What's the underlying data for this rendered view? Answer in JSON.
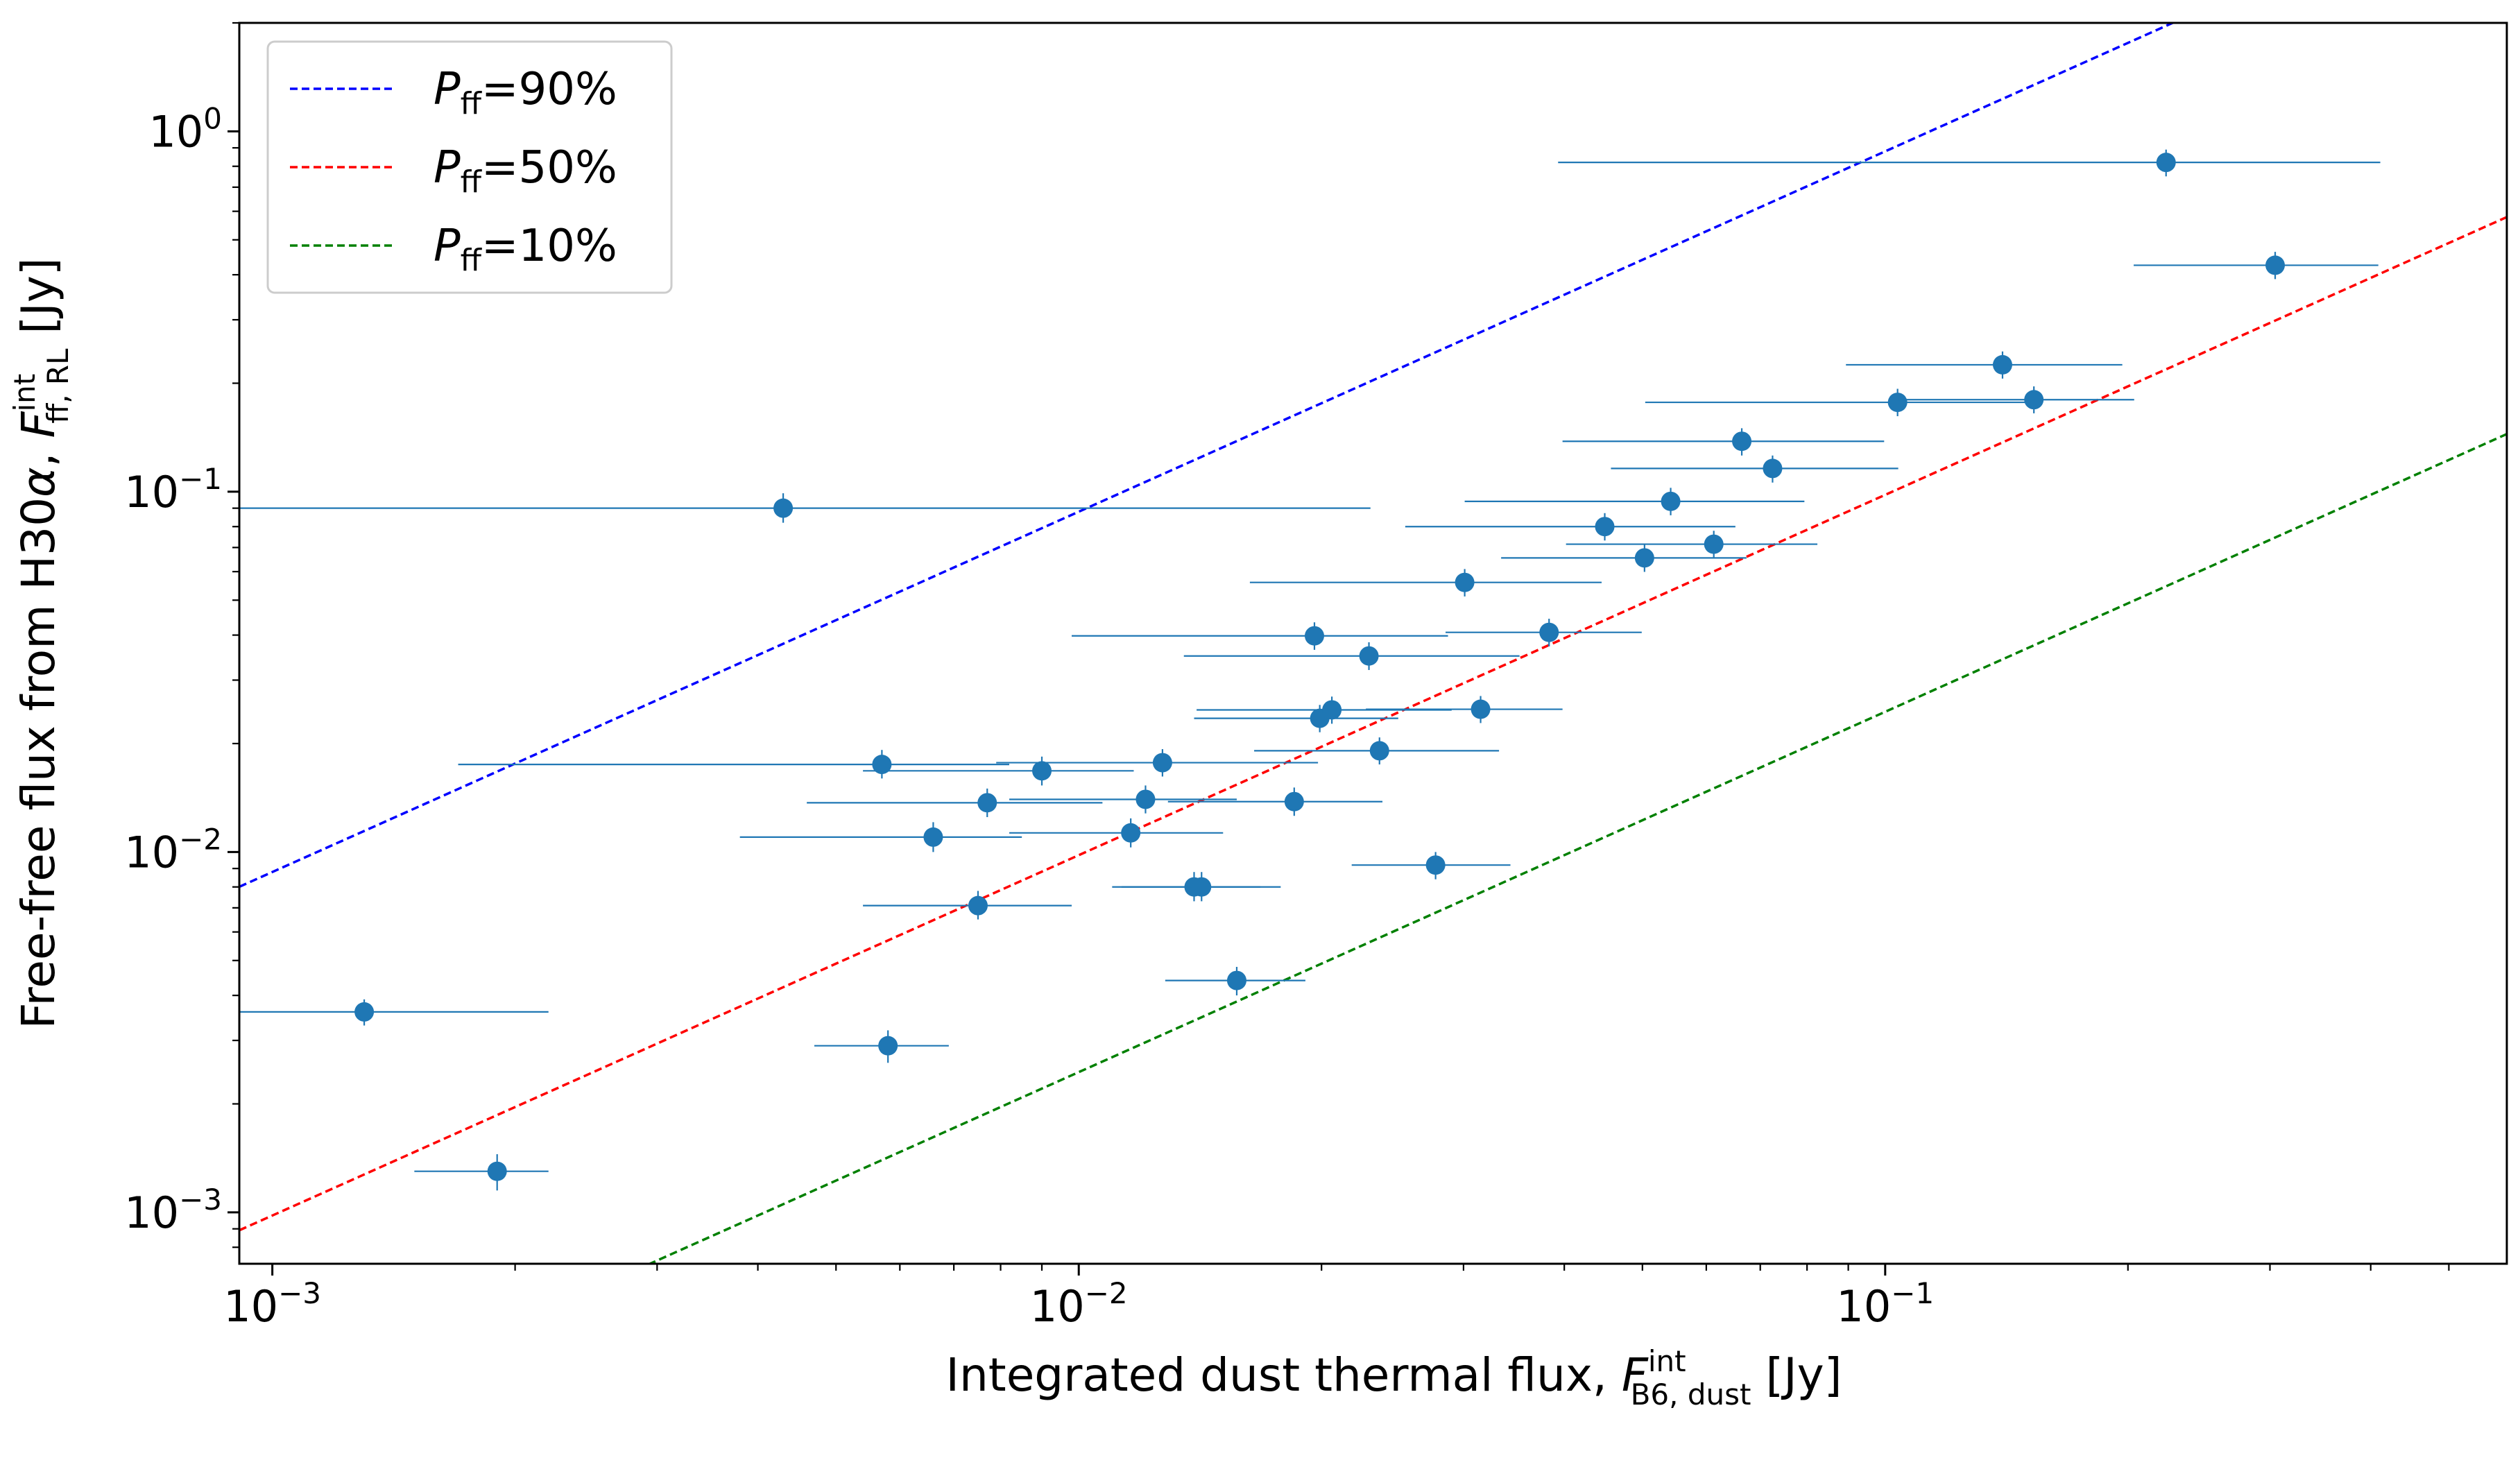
{
  "chart_data": {
    "type": "scatter",
    "xscale": "log",
    "yscale": "log",
    "xlim": [
      0.00091,
      0.59
    ],
    "ylim": [
      0.00072,
      2.0
    ],
    "xlabel": {
      "main": "Integrated dust thermal flux, ",
      "var": "F",
      "sup": "int",
      "sub": "B6, dust",
      "unit": " [Jy]"
    },
    "ylabel": {
      "main": "Free-free flux from H30",
      "alpha": "α",
      "comma": ", ",
      "var": "F",
      "sup": "int",
      "sub": "ff, RL",
      "unit": " [Jy]"
    },
    "x_major_ticks": [
      {
        "value": 0.001,
        "base": "10",
        "exp": "−3"
      },
      {
        "value": 0.01,
        "base": "10",
        "exp": "−2"
      },
      {
        "value": 0.1,
        "base": "10",
        "exp": "−1"
      }
    ],
    "y_major_ticks": [
      {
        "value": 0.001,
        "base": "10",
        "exp": "−3"
      },
      {
        "value": 0.01,
        "base": "10",
        "exp": "−2"
      },
      {
        "value": 0.1,
        "base": "10",
        "exp": "−1"
      },
      {
        "value": 1,
        "base": "10",
        "exp": "0"
      }
    ],
    "legend": {
      "placement": "top-left",
      "entries": [
        {
          "var": "P",
          "sub": "ff",
          "text": "=90%",
          "color": "#0000ff",
          "ratio": 0.9
        },
        {
          "var": "P",
          "sub": "ff",
          "text": "=50%",
          "color": "#ff0000",
          "ratio": 0.5
        },
        {
          "var": "P",
          "sub": "ff",
          "text": "=10%",
          "color": "#008000",
          "ratio": 0.1
        }
      ]
    },
    "reference_lines": [
      {
        "name": "P_ff=90%",
        "color": "#0000ff",
        "style": "dashed",
        "y_over_x": 8.8
      },
      {
        "name": "P_ff=50%",
        "color": "#ff0000",
        "style": "dashed",
        "y_over_x": 0.98
      },
      {
        "name": "P_ff=10%",
        "color": "#008000",
        "style": "dashed",
        "y_over_x": 0.245
      }
    ],
    "marker_color": "#1f77b4",
    "series": [
      {
        "name": "sources",
        "points": [
          {
            "x": 0.0043,
            "y": 0.09,
            "xerr": [
              0.00091,
              0.023
            ],
            "yerr": [
              0.082,
              0.099
            ]
          },
          {
            "x": 0.0013,
            "y": 0.0036,
            "xerr": [
              0.00091,
              0.0022
            ],
            "yerr": [
              0.0033,
              0.0039
            ]
          },
          {
            "x": 0.0019,
            "y": 0.0013,
            "xerr": [
              0.0015,
              0.0022
            ],
            "yerr": [
              0.00115,
              0.00145
            ]
          },
          {
            "x": 0.0058,
            "y": 0.0029,
            "xerr": [
              0.0047,
              0.0069
            ],
            "yerr": [
              0.0026,
              0.0032
            ]
          },
          {
            "x": 0.0057,
            "y": 0.0175,
            "xerr": [
              0.0017,
              0.0082
            ],
            "yerr": [
              0.016,
              0.0192
            ]
          },
          {
            "x": 0.0066,
            "y": 0.011,
            "xerr": [
              0.0038,
              0.0085
            ],
            "yerr": [
              0.01,
              0.0121
            ]
          },
          {
            "x": 0.0075,
            "y": 0.0071,
            "xerr": [
              0.0054,
              0.0098
            ],
            "yerr": [
              0.0065,
              0.0078
            ]
          },
          {
            "x": 0.0077,
            "y": 0.0137,
            "xerr": [
              0.0046,
              0.0107
            ],
            "yerr": [
              0.0125,
              0.015
            ]
          },
          {
            "x": 0.009,
            "y": 0.0168,
            "xerr": [
              0.0054,
              0.0117
            ],
            "yerr": [
              0.0153,
              0.0184
            ]
          },
          {
            "x": 0.0116,
            "y": 0.0113,
            "xerr": [
              0.0082,
              0.0151
            ],
            "yerr": [
              0.0103,
              0.0124
            ]
          },
          {
            "x": 0.0121,
            "y": 0.014,
            "xerr": [
              0.0082,
              0.0157
            ],
            "yerr": [
              0.0128,
              0.0153
            ]
          },
          {
            "x": 0.0127,
            "y": 0.0177,
            "xerr": [
              0.0079,
              0.0198
            ],
            "yerr": [
              0.0162,
              0.0193
            ]
          },
          {
            "x": 0.0139,
            "y": 0.008,
            "xerr": [
              0.011,
              0.0168
            ],
            "yerr": [
              0.0073,
              0.0088
            ]
          },
          {
            "x": 0.0142,
            "y": 0.008,
            "xerr": [
              0.0113,
              0.0178
            ],
            "yerr": [
              0.0073,
              0.0088
            ]
          },
          {
            "x": 0.0157,
            "y": 0.0044,
            "xerr": [
              0.0128,
              0.0191
            ],
            "yerr": [
              0.004,
              0.0048
            ]
          },
          {
            "x": 0.0185,
            "y": 0.0138,
            "xerr": [
              0.0129,
              0.0238
            ],
            "yerr": [
              0.0126,
              0.0151
            ]
          },
          {
            "x": 0.0196,
            "y": 0.0398,
            "xerr": [
              0.0098,
              0.0287
            ],
            "yerr": [
              0.0364,
              0.0434
            ]
          },
          {
            "x": 0.0199,
            "y": 0.0235,
            "xerr": [
              0.0139,
              0.0249
            ],
            "yerr": [
              0.0215,
              0.0256
            ]
          },
          {
            "x": 0.0206,
            "y": 0.0248,
            "xerr": [
              0.014,
              0.029
            ],
            "yerr": [
              0.0227,
              0.027
            ]
          },
          {
            "x": 0.0229,
            "y": 0.035,
            "xerr": [
              0.0135,
              0.0352
            ],
            "yerr": [
              0.032,
              0.0382
            ]
          },
          {
            "x": 0.0236,
            "y": 0.0191,
            "xerr": [
              0.0165,
              0.0332
            ],
            "yerr": [
              0.0175,
              0.0208
            ]
          },
          {
            "x": 0.0277,
            "y": 0.0092,
            "xerr": [
              0.0218,
              0.0343
            ],
            "yerr": [
              0.0084,
              0.01
            ]
          },
          {
            "x": 0.0301,
            "y": 0.056,
            "xerr": [
              0.0163,
              0.0445
            ],
            "yerr": [
              0.0512,
              0.061
            ]
          },
          {
            "x": 0.0315,
            "y": 0.0249,
            "xerr": [
              0.0227,
              0.0398
            ],
            "yerr": [
              0.0228,
              0.0271
            ]
          },
          {
            "x": 0.0383,
            "y": 0.0407,
            "xerr": [
              0.0285,
              0.0499
            ],
            "yerr": [
              0.0372,
              0.0444
            ]
          },
          {
            "x": 0.0449,
            "y": 0.08,
            "xerr": [
              0.0254,
              0.0652
            ],
            "yerr": [
              0.0732,
              0.0872
            ]
          },
          {
            "x": 0.0503,
            "y": 0.0655,
            "xerr": [
              0.0334,
              0.0673
            ],
            "yerr": [
              0.0599,
              0.0714
            ]
          },
          {
            "x": 0.0542,
            "y": 0.094,
            "xerr": [
              0.0301,
              0.0794
            ],
            "yerr": [
              0.086,
              0.1025
            ]
          },
          {
            "x": 0.0613,
            "y": 0.0715,
            "xerr": [
              0.0402,
              0.0824
            ],
            "yerr": [
              0.0654,
              0.0779
            ]
          },
          {
            "x": 0.0664,
            "y": 0.138,
            "xerr": [
              0.0398,
              0.0997
            ],
            "yerr": [
              0.126,
              0.15
            ]
          },
          {
            "x": 0.0725,
            "y": 0.116,
            "xerr": [
              0.0457,
              0.1038
            ],
            "yerr": [
              0.106,
              0.126
            ]
          },
          {
            "x": 0.1036,
            "y": 0.177,
            "xerr": [
              0.0504,
              0.1532
            ],
            "yerr": [
              0.162,
              0.193
            ]
          },
          {
            "x": 0.1398,
            "y": 0.225,
            "xerr": [
              0.0894,
              0.1968
            ],
            "yerr": [
              0.206,
              0.245
            ]
          },
          {
            "x": 0.1529,
            "y": 0.18,
            "xerr": [
              0.1038,
              0.2036
            ],
            "yerr": [
              0.165,
              0.196
            ]
          },
          {
            "x": 0.223,
            "y": 0.82,
            "xerr": [
              0.0393,
              0.4111
            ],
            "yerr": [
              0.75,
              0.89
            ]
          },
          {
            "x": 0.3045,
            "y": 0.425,
            "xerr": [
              0.2033,
              0.4088
            ],
            "yerr": [
              0.389,
              0.463
            ]
          }
        ]
      }
    ]
  }
}
